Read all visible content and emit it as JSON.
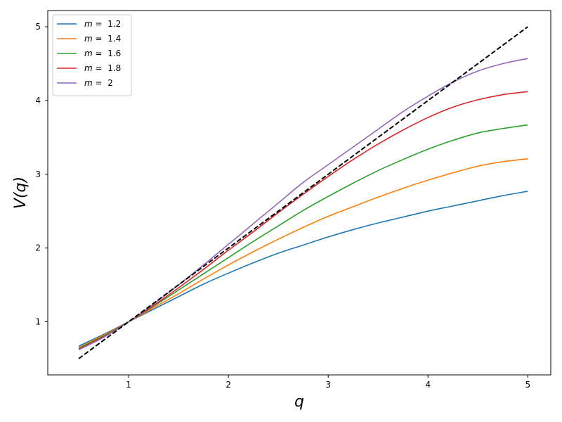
{
  "chart_data": {
    "type": "line",
    "title": "",
    "xlabel": "q",
    "ylabel": "V(q)",
    "xlim": [
      0.19,
      5.23
    ],
    "ylim": [
      0.28,
      5.22
    ],
    "x_ticks": [
      1,
      2,
      3,
      4,
      5
    ],
    "y_ticks": [
      1,
      2,
      3,
      4,
      5
    ],
    "grid": false,
    "legend_position": "top-left",
    "x": [
      0.5,
      0.75,
      1.0,
      1.25,
      1.5,
      1.75,
      2.0,
      2.25,
      2.5,
      2.75,
      3.0,
      3.25,
      3.5,
      3.75,
      4.0,
      4.25,
      4.5,
      4.75,
      5.0
    ],
    "series": [
      {
        "name": "m =  1.2",
        "color": "#1f77b4",
        "values": [
          0.67,
          0.83,
          1.0,
          1.17,
          1.34,
          1.51,
          1.66,
          1.8,
          1.93,
          2.04,
          2.15,
          2.25,
          2.34,
          2.42,
          2.5,
          2.57,
          2.64,
          2.71,
          2.77
        ]
      },
      {
        "name": "m =  1.4",
        "color": "#ff7f0e",
        "values": [
          0.65,
          0.82,
          1.0,
          1.19,
          1.38,
          1.58,
          1.77,
          1.95,
          2.12,
          2.28,
          2.43,
          2.56,
          2.69,
          2.81,
          2.92,
          3.02,
          3.11,
          3.17,
          3.21
        ]
      },
      {
        "name": "m =  1.6",
        "color": "#2ca02c",
        "values": [
          0.64,
          0.81,
          1.0,
          1.21,
          1.43,
          1.65,
          1.87,
          2.09,
          2.3,
          2.51,
          2.7,
          2.88,
          3.05,
          3.2,
          3.34,
          3.46,
          3.56,
          3.62,
          3.67
        ]
      },
      {
        "name": "m =  1.8",
        "color": "#d62728",
        "values": [
          0.63,
          0.8,
          1.0,
          1.22,
          1.46,
          1.71,
          1.97,
          2.22,
          2.48,
          2.73,
          2.97,
          3.2,
          3.41,
          3.6,
          3.77,
          3.91,
          4.01,
          4.08,
          4.12
        ]
      },
      {
        "name": "m =  2",
        "color": "#9467bd",
        "values": [
          0.62,
          0.79,
          1.0,
          1.24,
          1.5,
          1.77,
          2.05,
          2.33,
          2.61,
          2.89,
          3.13,
          3.37,
          3.61,
          3.85,
          4.06,
          4.25,
          4.4,
          4.5,
          4.57
        ]
      }
    ],
    "reference_line": {
      "name": "V = q",
      "color": "#000000",
      "style": "dashed",
      "x": [
        0.5,
        5.0
      ],
      "values": [
        0.5,
        5.0
      ]
    }
  }
}
